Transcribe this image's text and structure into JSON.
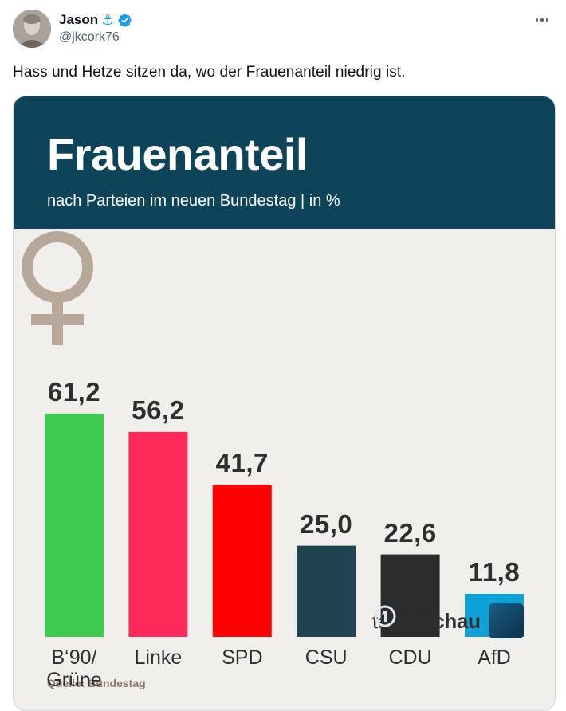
{
  "tweet": {
    "author_name": "Jason",
    "author_handle": "@jkcork76",
    "text": "Hass und Hetze sitzen da, wo der Frauenanteil niedrig ist.",
    "icons": [
      "anchor-icon",
      "verified-badge-icon",
      "more-options-icon"
    ]
  },
  "graphic": {
    "title": "Frauenanteil",
    "subtitle": "nach Parteien im neuen Bundestag | in %",
    "brand_regular": "tages",
    "brand_bold": "schau",
    "source": "Quelle: Bundestag",
    "colors": {
      "banner": "#0e4459",
      "background": "#f1efeb",
      "symbol": "#b8a89a"
    }
  },
  "chart_data": {
    "type": "bar",
    "categories": [
      "B‘90/\nGrüne",
      "Linke",
      "SPD",
      "CSU",
      "CDU",
      "AfD"
    ],
    "values": [
      61.2,
      56.2,
      41.7,
      25.0,
      22.6,
      11.8
    ],
    "value_labels": [
      "61,2",
      "56,2",
      "41,7",
      "25,0",
      "22,6",
      "11,8"
    ],
    "colors": [
      "#3fcb52",
      "#ff2a5a",
      "#ff0000",
      "#1f4450",
      "#2c2c2c",
      "#0ea2d8"
    ],
    "title": "Frauenanteil",
    "subtitle": "nach Parteien im neuen Bundestag | in %",
    "ylim": [
      0,
      61.2
    ],
    "grid": false,
    "legend": "none"
  }
}
